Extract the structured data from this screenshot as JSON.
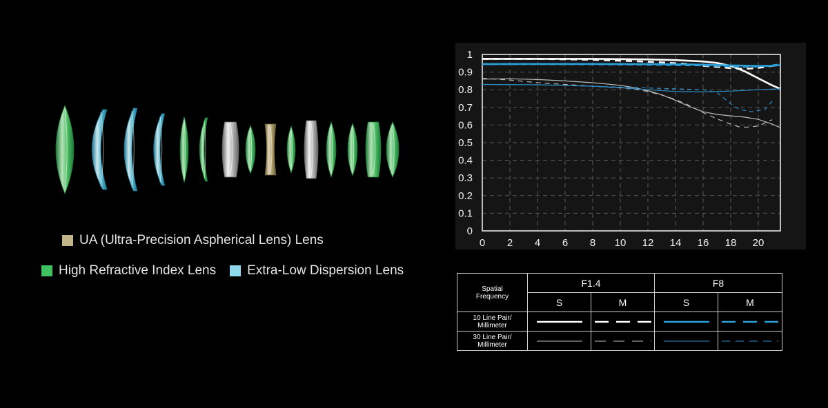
{
  "legend": {
    "ua_label": "UA (Ultra-Precision Aspherical Lens) Lens",
    "hri_label": "High Refractive Index Lens",
    "ed_label": "Extra-Low Dispersion Lens",
    "ua_color": "#c2b58a",
    "hri_color": "#3fc262",
    "ed_color": "#8fd9ec"
  },
  "lens_elements": [
    {
      "type": "hri",
      "shape": "biconvex"
    },
    {
      "type": "ed",
      "shape": "meniscus"
    },
    {
      "type": "ed",
      "shape": "meniscus"
    },
    {
      "type": "ed",
      "shape": "meniscus"
    },
    {
      "type": "hri",
      "shape": "biconvex"
    },
    {
      "type": "hri",
      "shape": "meniscus"
    },
    {
      "type": "normal",
      "shape": "cemented"
    },
    {
      "type": "hri",
      "shape": "biconvex"
    },
    {
      "type": "ua",
      "shape": "biconcave"
    },
    {
      "type": "hri",
      "shape": "biconvex"
    },
    {
      "type": "normal",
      "shape": "cemented"
    },
    {
      "type": "hri",
      "shape": "biconvex"
    },
    {
      "type": "hri",
      "shape": "biconvex"
    },
    {
      "type": "hri",
      "shape": "cemented"
    },
    {
      "type": "hri",
      "shape": "biconvex"
    }
  ],
  "chart_data": {
    "type": "line",
    "x_ticks": [
      0,
      2,
      4,
      6,
      8,
      10,
      12,
      14,
      16,
      18,
      20
    ],
    "y_ticks": [
      "1",
      "0.9",
      "0.8",
      "0.7",
      "0.6",
      "0.5",
      "0.4",
      "0.3",
      "0.2",
      "0.1",
      "0"
    ],
    "xlim": [
      0,
      21.6
    ],
    "ylim": [
      0,
      1
    ],
    "grid": true,
    "series": [
      {
        "name": "F1.4 S 10 Line Pair/Millimeter",
        "color": "#ffffff",
        "width": 2.6,
        "dash": "",
        "x": [
          0,
          4,
          8,
          12,
          14,
          16,
          17,
          18,
          19,
          20,
          21,
          21.6
        ],
        "y": [
          0.975,
          0.975,
          0.975,
          0.972,
          0.968,
          0.96,
          0.952,
          0.935,
          0.905,
          0.865,
          0.825,
          0.805
        ]
      },
      {
        "name": "F1.4 M 10 Line Pair/Millimeter",
        "color": "#ffffff",
        "width": 2.6,
        "dash": "9 7",
        "x": [
          0,
          4,
          8,
          11,
          13,
          15,
          16,
          17,
          18,
          19,
          20,
          21,
          21.6
        ],
        "y": [
          0.975,
          0.975,
          0.97,
          0.962,
          0.955,
          0.945,
          0.936,
          0.93,
          0.922,
          0.918,
          0.924,
          0.935,
          0.94
        ]
      },
      {
        "name": "F1.4 S 30 Line Pair/Millimeter",
        "color": "#bbbbbb",
        "width": 1.2,
        "dash": "",
        "x": [
          0,
          2,
          4,
          6,
          8,
          10,
          11,
          12,
          13,
          14,
          15,
          16,
          17,
          18,
          19,
          20,
          21,
          21.6
        ],
        "y": [
          0.86,
          0.862,
          0.858,
          0.85,
          0.84,
          0.825,
          0.812,
          0.795,
          0.772,
          0.74,
          0.705,
          0.675,
          0.66,
          0.652,
          0.645,
          0.632,
          0.605,
          0.585
        ]
      },
      {
        "name": "F1.4 M 30 Line Pair/Millimeter",
        "color": "#bbbbbb",
        "width": 1.2,
        "dash": "7 6",
        "x": [
          0,
          2,
          4,
          6,
          8,
          10,
          11,
          12,
          13,
          14,
          15,
          16,
          17,
          18,
          18.6,
          19.2,
          20,
          21
        ],
        "y": [
          0.865,
          0.855,
          0.84,
          0.83,
          0.82,
          0.81,
          0.805,
          0.79,
          0.77,
          0.745,
          0.71,
          0.67,
          0.635,
          0.605,
          0.59,
          0.588,
          0.595,
          0.63
        ]
      },
      {
        "name": "F8 S 10 Line Pair/Millimeter",
        "color": "#2b9fd8",
        "width": 2.6,
        "dash": "",
        "x": [
          0,
          4,
          8,
          12,
          14,
          16,
          18,
          20,
          21,
          21.6
        ],
        "y": [
          0.945,
          0.946,
          0.946,
          0.945,
          0.944,
          0.942,
          0.938,
          0.935,
          0.935,
          0.94
        ]
      },
      {
        "name": "F8 M 10 Line Pair/Millimeter",
        "color": "#2b9fd8",
        "width": 2.6,
        "dash": "8 6",
        "x": [
          0,
          4,
          8,
          12,
          14,
          16,
          17,
          18,
          19,
          20,
          21,
          21.6
        ],
        "y": [
          0.945,
          0.945,
          0.944,
          0.942,
          0.94,
          0.938,
          0.936,
          0.932,
          0.93,
          0.932,
          0.938,
          0.945
        ]
      },
      {
        "name": "F8 S 30 Line Pair/Millimeter",
        "color": "#2b8fc8",
        "width": 1.2,
        "dash": "",
        "x": [
          0,
          4,
          8,
          10,
          12,
          14,
          16,
          18,
          19,
          20,
          21,
          21.6
        ],
        "y": [
          0.83,
          0.828,
          0.82,
          0.812,
          0.8,
          0.79,
          0.788,
          0.792,
          0.796,
          0.8,
          0.803,
          0.805
        ]
      },
      {
        "name": "F8 M 30 Line Pair/Millimeter",
        "color": "#2b8fc8",
        "width": 1.2,
        "dash": "6 5",
        "x": [
          0,
          4,
          8,
          10,
          12,
          14,
          16,
          17,
          18,
          18.6,
          19.5,
          20.5,
          21
        ],
        "y": [
          0.83,
          0.828,
          0.82,
          0.815,
          0.81,
          0.805,
          0.8,
          0.785,
          0.72,
          0.69,
          0.675,
          0.69,
          0.735
        ]
      }
    ]
  },
  "table": {
    "header_label": "Spatial Frequency",
    "f14_label": "F1.4",
    "f8_label": "F8",
    "s_label": "S",
    "m_label": "M",
    "row10_label": "10 Line Pair/ Millimeter",
    "row30_label": "30 Line Pair/ Millimeter"
  }
}
